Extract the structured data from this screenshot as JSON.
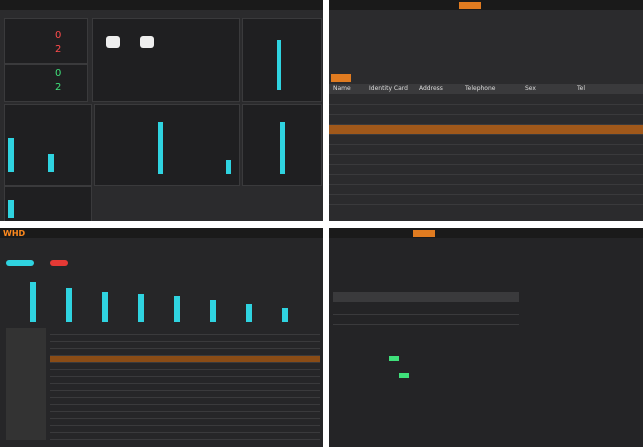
{
  "panels": {
    "dashboard": {
      "stats": [
        "0",
        "2",
        "0",
        "2"
      ]
    },
    "records": {
      "columns": [
        "Name",
        "Identity Card",
        "Address",
        "Telephone",
        "Sex",
        "Tel"
      ]
    },
    "monitor": {
      "logo": "WHD"
    }
  }
}
